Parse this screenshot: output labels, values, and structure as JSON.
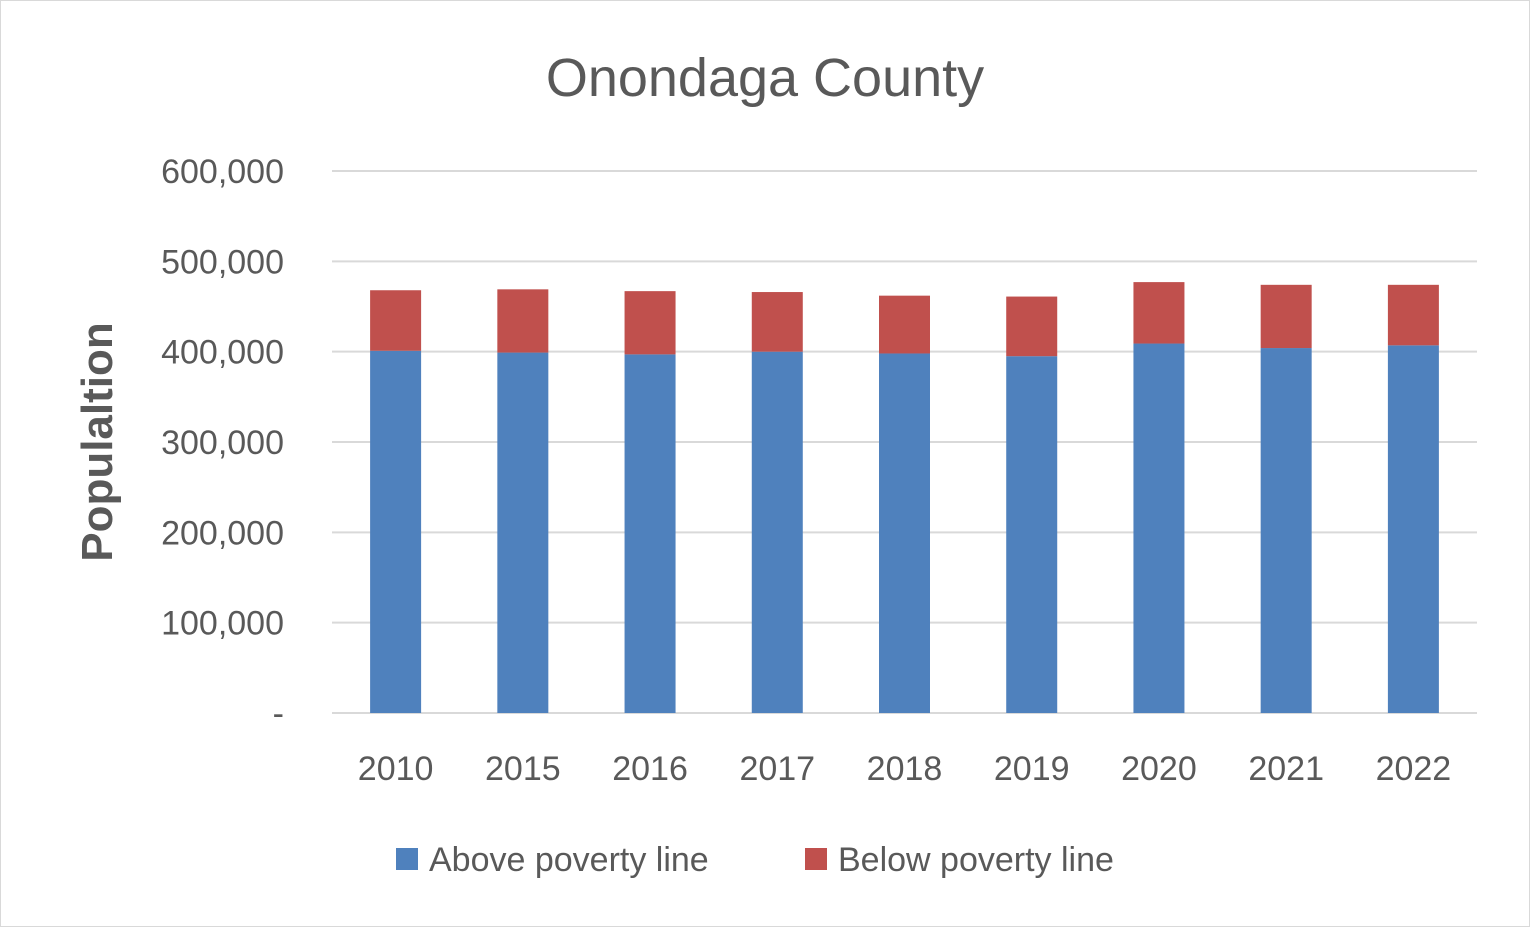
{
  "chart_data": {
    "type": "bar",
    "stacked": true,
    "title": "Onondaga County",
    "xlabel": "",
    "ylabel": "Populaltion",
    "ylim": [
      0,
      600000
    ],
    "yticks": [
      0,
      100000,
      200000,
      300000,
      400000,
      500000,
      600000
    ],
    "ytick_labels": [
      "-",
      "100,000",
      "200,000",
      "300,000",
      "400,000",
      "500,000",
      "600,000"
    ],
    "categories": [
      "2010",
      "2015",
      "2016",
      "2017",
      "2018",
      "2019",
      "2020",
      "2021",
      "2022"
    ],
    "series": [
      {
        "name": "Above poverty line",
        "color": "#4f81bd",
        "values": [
          401000,
          399000,
          397000,
          400000,
          398000,
          395000,
          409000,
          404000,
          407000
        ]
      },
      {
        "name": "Below poverty line",
        "color": "#c0504d",
        "values": [
          67000,
          70000,
          70000,
          66000,
          64000,
          66000,
          68000,
          70000,
          67000
        ]
      }
    ],
    "grid": true,
    "legend_position": "bottom"
  }
}
